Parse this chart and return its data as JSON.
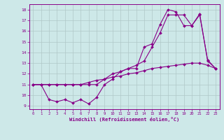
{
  "xlabel": "Windchill (Refroidissement éolien,°C)",
  "bg_color": "#cde8e8",
  "grid_color": "#b0c8c8",
  "line_color": "#880088",
  "x_ticks": [
    0,
    1,
    2,
    3,
    4,
    5,
    6,
    7,
    8,
    9,
    10,
    11,
    12,
    13,
    14,
    15,
    16,
    17,
    18,
    19,
    20,
    21,
    22,
    23
  ],
  "y_ticks": [
    9,
    10,
    11,
    12,
    13,
    14,
    15,
    16,
    17,
    18
  ],
  "ylim": [
    8.7,
    18.5
  ],
  "xlim": [
    -0.5,
    23.5
  ],
  "line1_x": [
    0,
    1,
    2,
    3,
    4,
    5,
    6,
    7,
    8,
    9,
    10,
    11,
    12,
    13,
    14,
    15,
    16,
    17,
    18,
    19,
    20,
    21,
    22,
    23
  ],
  "line1_y": [
    11,
    11,
    11,
    11,
    11,
    11,
    11,
    11,
    11,
    11.5,
    12,
    12.2,
    12.5,
    12.8,
    13.2,
    14.5,
    15.8,
    17.5,
    17.5,
    17.5,
    16.5,
    17.5,
    13.3,
    12.5
  ],
  "line2_x": [
    0,
    1,
    2,
    3,
    4,
    5,
    6,
    7,
    8,
    9,
    10,
    11,
    12,
    13,
    14,
    15,
    16,
    17,
    18,
    19,
    20,
    21,
    22,
    23
  ],
  "line2_y": [
    11,
    11,
    9.6,
    9.4,
    9.6,
    9.3,
    9.6,
    9.2,
    9.8,
    11,
    11.5,
    12.2,
    12.5,
    12.5,
    14.5,
    14.8,
    16.6,
    18.0,
    17.8,
    16.5,
    16.5,
    17.6,
    13.2,
    12.5
  ],
  "line3_x": [
    0,
    1,
    2,
    3,
    4,
    5,
    6,
    7,
    8,
    9,
    10,
    11,
    12,
    13,
    14,
    15,
    16,
    17,
    18,
    19,
    20,
    21,
    22,
    23
  ],
  "line3_y": [
    11,
    11,
    11,
    11,
    11,
    11,
    11,
    11.2,
    11.4,
    11.5,
    11.7,
    11.8,
    12.0,
    12.1,
    12.3,
    12.5,
    12.6,
    12.7,
    12.8,
    12.9,
    13.0,
    13.0,
    12.8,
    12.5
  ]
}
